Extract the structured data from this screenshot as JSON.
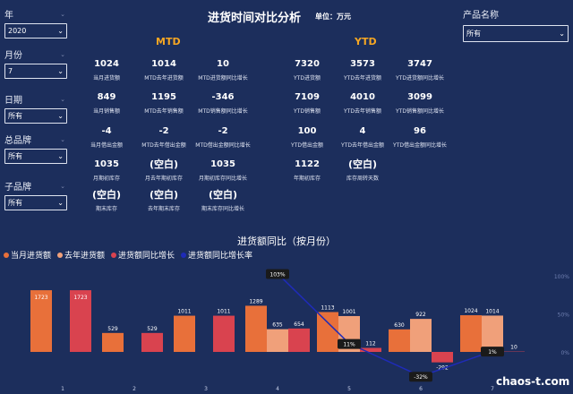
{
  "filters": {
    "year": {
      "label": "年",
      "value": "2020"
    },
    "month": {
      "label": "月份",
      "value": "7"
    },
    "date": {
      "label": "日期",
      "value": "所有"
    },
    "brand": {
      "label": "总品牌",
      "value": "所有"
    },
    "sub_brand": {
      "label": "子品牌",
      "value": "所有"
    },
    "product": {
      "label": "产品名称",
      "value": "所有"
    }
  },
  "header": {
    "title": "进货时间对比分析",
    "unit": "单位：万元"
  },
  "mtd": {
    "title": "MTD",
    "kpis": [
      {
        "value": "1024",
        "label": "当月进货额"
      },
      {
        "value": "1014",
        "label": "MTD去年进货额"
      },
      {
        "value": "10",
        "label": "MTD进货额同比增长"
      },
      {
        "value": "849",
        "label": "当月销售额"
      },
      {
        "value": "1195",
        "label": "MTD去年销售额"
      },
      {
        "value": "-346",
        "label": "MTD销售额同比增长"
      },
      {
        "value": "-4",
        "label": "当月借出金额"
      },
      {
        "value": "-2",
        "label": "MTD去年借出金额"
      },
      {
        "value": "-2",
        "label": "MTD借出金额同比增长"
      },
      {
        "value": "1035",
        "label": "月期初库存"
      },
      {
        "value": "(空白)",
        "label": "月去年期初库存"
      },
      {
        "value": "1035",
        "label": "月期初库存同比增长"
      },
      {
        "value": "(空白)",
        "label": "期末库存"
      },
      {
        "value": "(空白)",
        "label": "去年期末库存"
      },
      {
        "value": "(空白)",
        "label": "期末库存同比增长"
      }
    ]
  },
  "ytd": {
    "title": "YTD",
    "kpis": [
      {
        "value": "7320",
        "label": "YTD进货额"
      },
      {
        "value": "3573",
        "label": "YTD去年进货额"
      },
      {
        "value": "3747",
        "label": "YTD进货额同比增长"
      },
      {
        "value": "7109",
        "label": "YTD销售额"
      },
      {
        "value": "4010",
        "label": "YTD去年销售额"
      },
      {
        "value": "3099",
        "label": "YTD销售额同比增长"
      },
      {
        "value": "100",
        "label": "YTD借出金额"
      },
      {
        "value": "4",
        "label": "YTD去年借出金额"
      },
      {
        "value": "96",
        "label": "YTD借出金额同比增长"
      },
      {
        "value": "1122",
        "label": "年期初库存"
      },
      {
        "value": "(空白)",
        "label": "库存周转天数"
      }
    ]
  },
  "chart_data": {
    "type": "bar",
    "title": "进货额同比（按月份）",
    "categories": [
      "1",
      "2",
      "3",
      "4",
      "5",
      "6",
      "7"
    ],
    "series": [
      {
        "name": "当月进货额",
        "color": "#e8703a",
        "values": [
          1723,
          529,
          1011,
          1289,
          1113,
          630,
          1024
        ]
      },
      {
        "name": "去年进货额",
        "color": "#f0a07a",
        "values": [
          null,
          null,
          null,
          635,
          1001,
          922,
          1014
        ]
      },
      {
        "name": "进货额同比增长",
        "color": "#d9434f",
        "values": [
          1723,
          529,
          1011,
          654,
          112,
          -292,
          10
        ]
      },
      {
        "name": "进货额同比增长率",
        "color": "#1f2bb8",
        "type": "line",
        "values": [
          null,
          null,
          null,
          103,
          11,
          -32,
          1
        ]
      }
    ],
    "line_labels": [
      "",
      "",
      "",
      "103%",
      "11%",
      "-32%",
      "1%"
    ],
    "right_axis": {
      "ticks": [
        "100%",
        "50%",
        "0%"
      ],
      "range": [
        -50,
        110
      ]
    },
    "ylim": [
      -350,
      2000
    ]
  },
  "watermark": "chaos-t.com"
}
